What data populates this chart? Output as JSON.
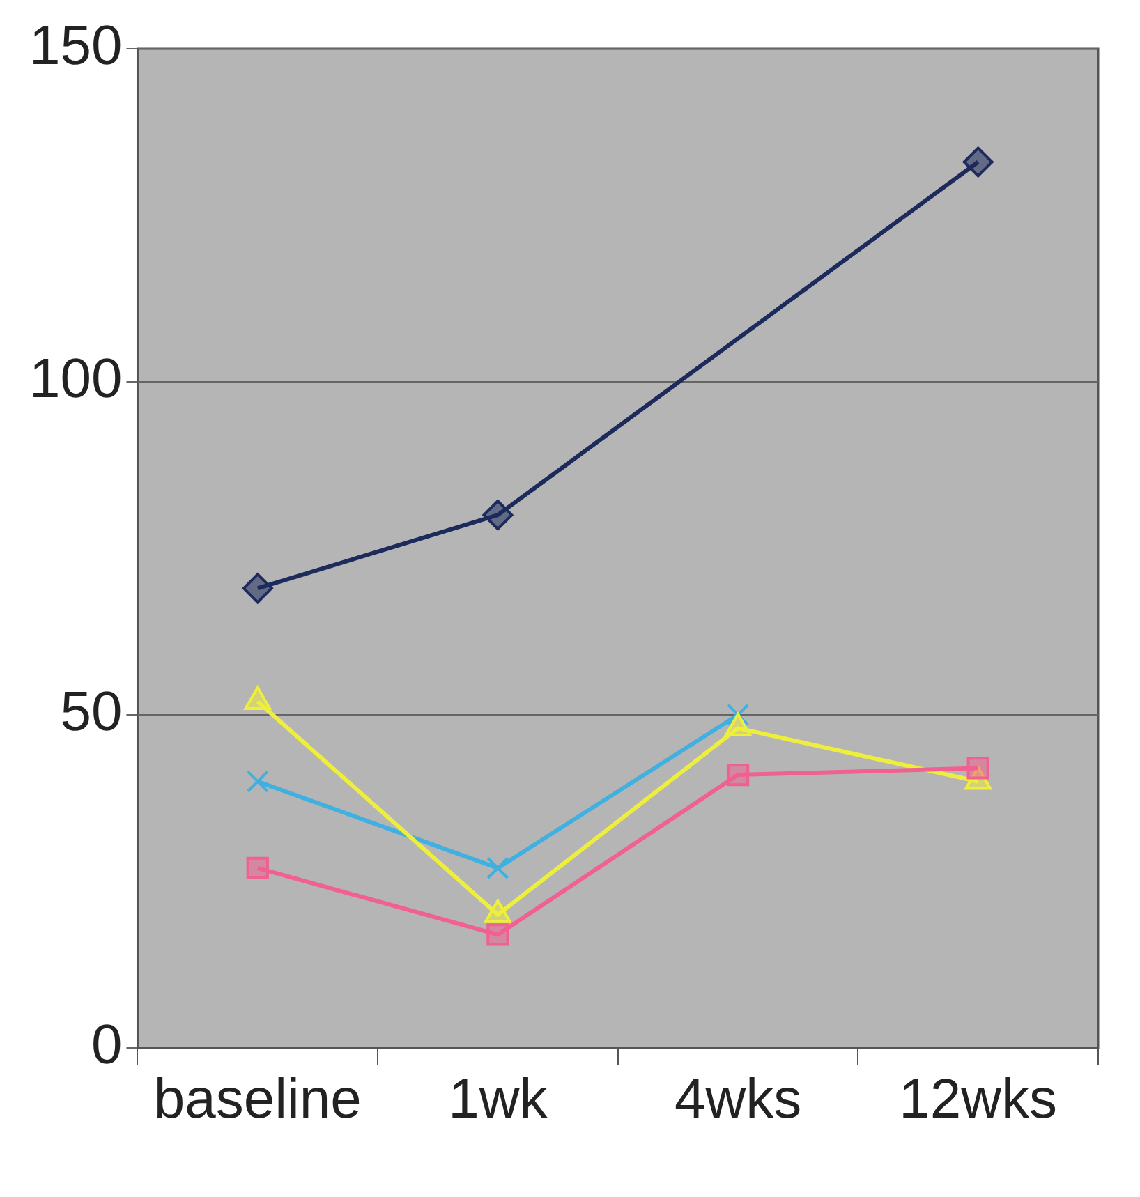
{
  "chart_data": {
    "type": "line",
    "categories": [
      "baseline",
      "1wk",
      "4wks",
      "12wks"
    ],
    "series": [
      {
        "color": "#1c2a5c",
        "marker": "diamond",
        "values": [
          69,
          80,
          null,
          133
        ]
      },
      {
        "color": "#f06090",
        "marker": "square",
        "values": [
          27,
          17,
          41,
          42
        ]
      },
      {
        "color": "#eeee3c",
        "marker": "triangle",
        "values": [
          52,
          20,
          48,
          40
        ]
      },
      {
        "color": "#40b0e0",
        "marker": "cross",
        "values": [
          40,
          27,
          50,
          null
        ]
      }
    ],
    "ylim": [
      0,
      150
    ],
    "yticks": [
      0,
      50,
      100,
      150
    ],
    "grid": "y",
    "legend": false
  }
}
